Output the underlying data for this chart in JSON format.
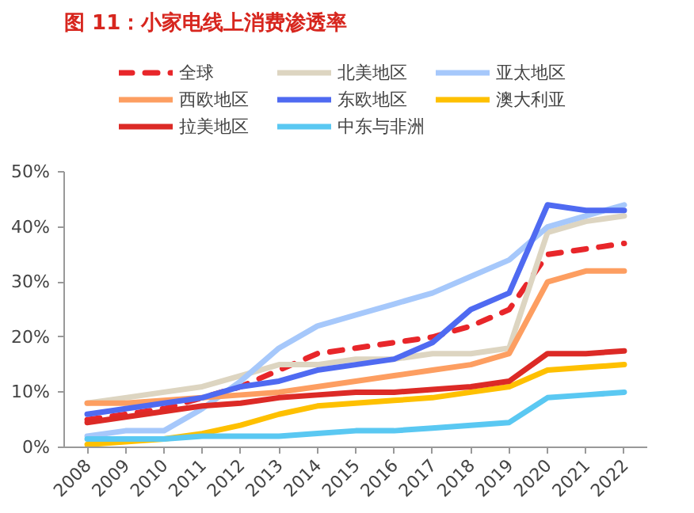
{
  "chart_data": {
    "type": "line",
    "title": "图 11：小家电线上消费渗透率",
    "categories": [
      "2008",
      "2009",
      "2010",
      "2011",
      "2012",
      "2013",
      "2014",
      "2015",
      "2016",
      "2017",
      "2018",
      "2019",
      "2020",
      "2021",
      "2022"
    ],
    "ylim": [
      0,
      50
    ],
    "yticks": [
      {
        "value": 0,
        "label": "0%"
      },
      {
        "value": 10,
        "label": "10%"
      },
      {
        "value": 20,
        "label": "20%"
      },
      {
        "value": 30,
        "label": "30%"
      },
      {
        "value": 40,
        "label": "40%"
      },
      {
        "value": 50,
        "label": "50%"
      }
    ],
    "grid": false,
    "legend": "top",
    "marker": "none",
    "series": [
      {
        "name": "全球",
        "color": "#e8262a",
        "line_style": "dashed",
        "values": [
          5,
          6,
          7,
          9,
          11,
          14,
          17,
          18,
          19,
          20,
          22,
          25,
          35,
          36,
          37
        ]
      },
      {
        "name": "北美地区",
        "color": "#ddd5c1",
        "values": [
          8,
          9,
          10,
          11,
          13,
          15,
          15,
          16,
          16,
          17,
          17,
          18,
          39,
          41,
          42
        ]
      },
      {
        "name": "亚太地区",
        "color": "#a6c8fb",
        "values": [
          2,
          3,
          3,
          7,
          12,
          18,
          22,
          24,
          26,
          28,
          31,
          34,
          40,
          42,
          44
        ]
      },
      {
        "name": "西欧地区",
        "color": "#fd9e61",
        "values": [
          8,
          8,
          8.5,
          9,
          9.5,
          10,
          11,
          12,
          13,
          14,
          15,
          17,
          30,
          32,
          32
        ]
      },
      {
        "name": "东欧地区",
        "color": "#4f6af1",
        "values": [
          6,
          7,
          8,
          9,
          11,
          12,
          14,
          15,
          16,
          19,
          25,
          28,
          44,
          43,
          43
        ]
      },
      {
        "name": "澳大利亚",
        "color": "#fec000",
        "values": [
          0.5,
          1,
          1.5,
          2.5,
          4,
          6,
          7.5,
          8,
          8.5,
          9,
          10,
          11,
          14,
          14.5,
          15
        ]
      },
      {
        "name": "拉美地区",
        "color": "#dc2a26",
        "values": [
          4.5,
          5.5,
          6.5,
          7.5,
          8,
          9,
          9.5,
          10,
          10,
          10.5,
          11,
          12,
          17,
          17,
          17.5
        ]
      },
      {
        "name": "中东与非洲",
        "color": "#5ac8f2",
        "values": [
          1.5,
          1.5,
          1.5,
          2,
          2,
          2,
          2.5,
          3,
          3,
          3.5,
          4,
          4.5,
          9,
          9.5,
          10
        ]
      }
    ]
  }
}
